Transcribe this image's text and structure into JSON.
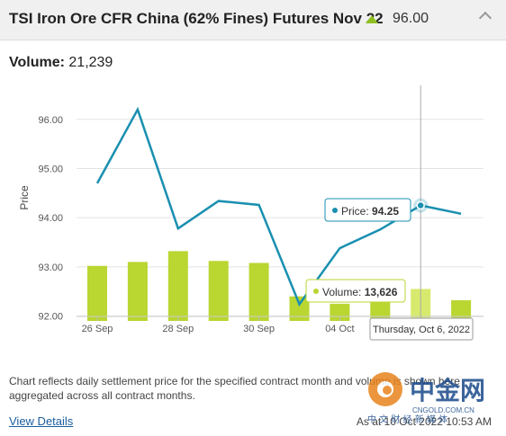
{
  "header": {
    "title": "TSI Iron Ore CFR China (62% Fines) Futures Nov 22",
    "price": "96.00",
    "change_direction_icon": "triangle-up-icon",
    "up_color": "#8fbf1f",
    "collapse_icon": "chevron-up-icon"
  },
  "volume": {
    "label": "Volume:",
    "value": "21,239"
  },
  "chart_data": {
    "type": "line",
    "ylabel": "Price",
    "y_ticks": [
      "96.00",
      "95.00",
      "94.00",
      "93.00",
      "92.00"
    ],
    "ylim": [
      91.9,
      96.6
    ],
    "x_tick_labels": [
      "26 Sep",
      "28 Sep",
      "30 Sep",
      "04 Oct"
    ],
    "x_tick_index": [
      0,
      2,
      4,
      6
    ],
    "grid": true,
    "series": [
      {
        "kind": "line",
        "color": "#1a8fb0",
        "values": [
          94.7,
          96.2,
          93.78,
          94.34,
          94.26,
          92.24,
          93.38,
          93.76,
          94.25,
          94.08
        ]
      },
      {
        "kind": "bar",
        "color": "#b9d631",
        "values": [
          93.02,
          93.1,
          93.32,
          93.12,
          93.08,
          92.4,
          92.25,
          92.3,
          92.55,
          92.32
        ]
      }
    ],
    "highlight_index": 8,
    "tooltips": {
      "price": {
        "label": "Price:",
        "value": "94.25"
      },
      "volume": {
        "label": "Volume:",
        "value": "13,626"
      },
      "date": "Thursday, Oct 6, 2022"
    }
  },
  "note": "Chart reflects daily settlement price for the specified contract month and volume is shown here aggregated across all contract months.",
  "footer": {
    "view_details": "View Details",
    "as_at": "As at 10 Oct 2022 10:53 AM"
  },
  "watermark": {
    "text": "中金网",
    "url": "CNGOLD.COM.CN",
    "sub": "中 文 财 经 新 媒 体"
  }
}
